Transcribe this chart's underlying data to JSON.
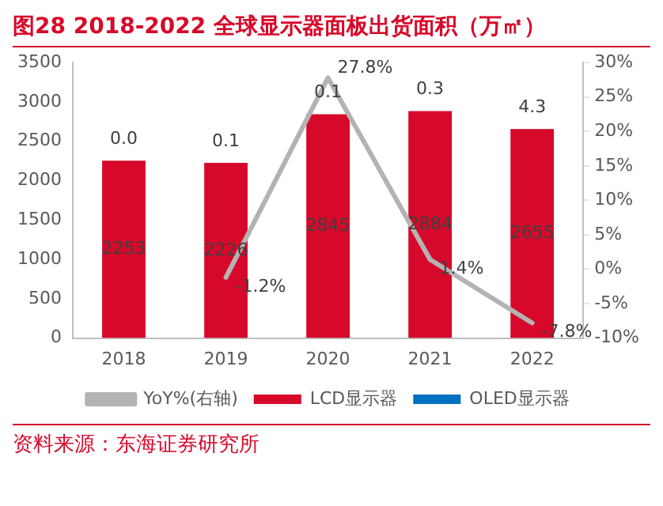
{
  "chart_data": {
    "type": "bar",
    "title": "图28  2018-2022 全球显示器面板出货面积（万㎡）",
    "categories": [
      "2018",
      "2019",
      "2020",
      "2021",
      "2022"
    ],
    "stacked": true,
    "series": [
      {
        "name": "LCD显示器",
        "color": "#d7092a",
        "values": [
          2253,
          2226,
          2845,
          2884,
          2655
        ],
        "value_labels": [
          "2253",
          "2226",
          "2845",
          "2884",
          "2655"
        ]
      },
      {
        "name": "OLED显示器",
        "color": "#0070c0",
        "values": [
          0.0,
          0.1,
          0.1,
          0.3,
          4.3
        ],
        "value_labels": [
          "0.0",
          "0.1",
          "0.1",
          "0.3",
          "4.3"
        ]
      },
      {
        "name": "YoY%(右轴)",
        "type": "line",
        "axis": "y2",
        "color": "#b3b3b3",
        "values": [
          null,
          -1.2,
          27.8,
          1.4,
          -7.8
        ],
        "value_labels": [
          null,
          "-1.2%",
          "27.8%",
          "1.4%",
          "-7.8%"
        ]
      }
    ],
    "ylim": [
      0,
      3500
    ],
    "yticks": [
      0,
      500,
      1000,
      1500,
      2000,
      2500,
      3000,
      3500
    ],
    "y2lim": [
      -10,
      30
    ],
    "y2ticks": [
      {
        "value": -10,
        "label": "-10%"
      },
      {
        "value": -5,
        "label": "-5%"
      },
      {
        "value": 0,
        "label": "0%"
      },
      {
        "value": 5,
        "label": "5%"
      },
      {
        "value": 10,
        "label": "10%"
      },
      {
        "value": 15,
        "label": "15%"
      },
      {
        "value": 20,
        "label": "20%"
      },
      {
        "value": 25,
        "label": "25%"
      },
      {
        "value": 30,
        "label": "30%"
      }
    ],
    "legend": "bottom",
    "annotations": [
      "资料来源：东海证券研究所"
    ]
  }
}
